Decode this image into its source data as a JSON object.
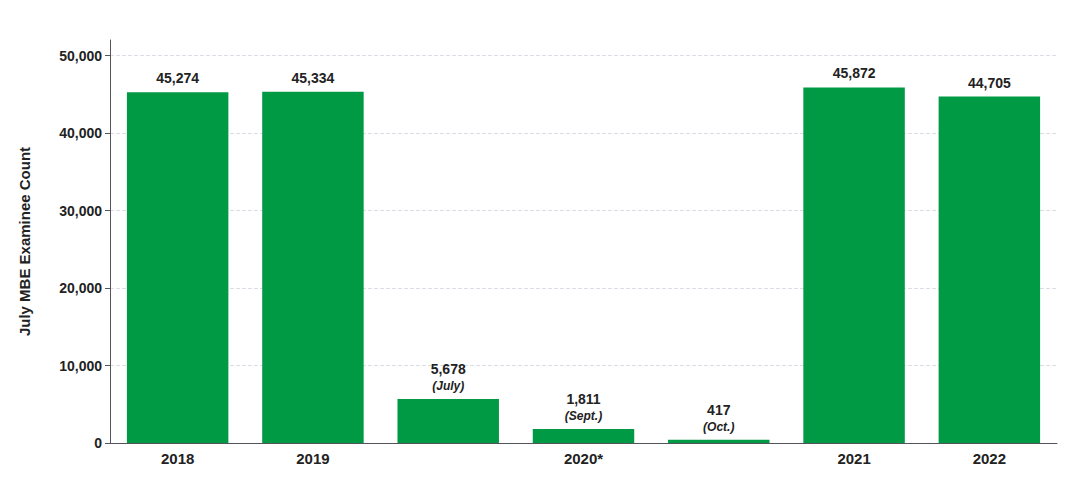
{
  "chart_data": {
    "type": "bar",
    "categories": [
      "2018",
      "2019",
      null,
      "2020*",
      null,
      "2021",
      "2022"
    ],
    "values": [
      45274,
      45334,
      5678,
      1811,
      417,
      45872,
      44705
    ],
    "value_labels": [
      "45,274",
      "45,334",
      "5,678",
      "1,811",
      "417",
      "45,872",
      "44,705"
    ],
    "data_labels": true,
    "annotations": [
      {
        "index": 2,
        "text": "(July)"
      },
      {
        "index": 3,
        "text": "(Sept.)"
      },
      {
        "index": 4,
        "text": "(Oct.)"
      }
    ],
    "ylabel": "July MBE Examinee Count",
    "ylim": [
      0,
      52000
    ],
    "yticks": [
      0,
      {
        "value": 10000,
        "label": "10,000"
      },
      {
        "value": 20000,
        "label": "20,000"
      },
      {
        "value": 30000,
        "label": "30,000"
      },
      {
        "value": 40000,
        "label": "40,000"
      },
      {
        "value": 50000,
        "label": "50,000"
      }
    ],
    "color": "#009944",
    "grid": true
  }
}
